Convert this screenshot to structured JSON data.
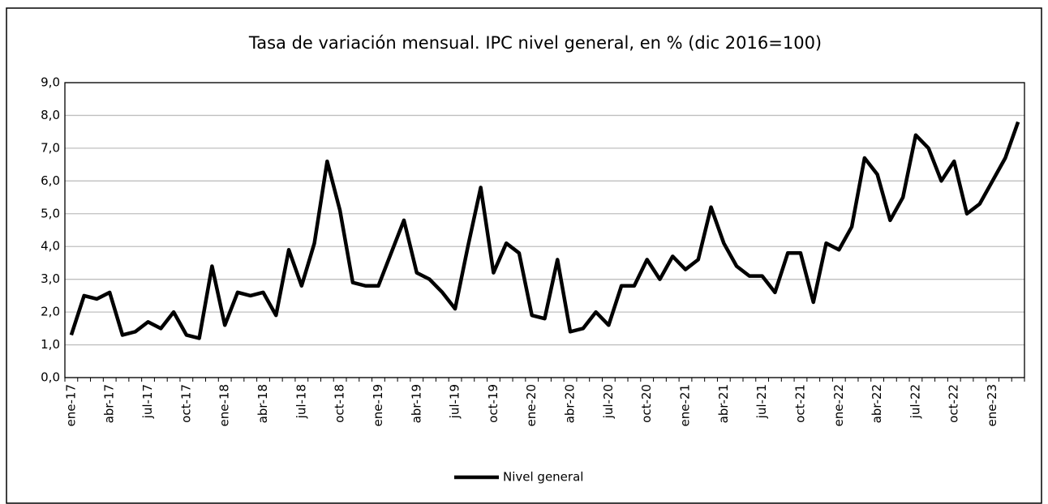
{
  "chart_data": {
    "type": "line",
    "title": "Tasa de variación mensual. IPC nivel general, en % (dic 2016=100)",
    "categories": [
      "ene-17",
      null,
      null,
      "abr-17",
      null,
      null,
      "jul-17",
      null,
      null,
      "oct-17",
      null,
      null,
      "ene-18",
      null,
      null,
      "abr-18",
      null,
      null,
      "jul-18",
      null,
      null,
      "oct-18",
      null,
      null,
      "ene-19",
      null,
      null,
      "abr-19",
      null,
      null,
      "jul-19",
      null,
      null,
      "oct-19",
      null,
      null,
      "ene-20",
      null,
      null,
      "abr-20",
      null,
      null,
      "jul-20",
      null,
      null,
      "oct-20",
      null,
      null,
      "ene-21",
      null,
      null,
      "abr-21",
      null,
      null,
      "jul-21",
      null,
      null,
      "oct-21",
      null,
      null,
      "ene-22",
      null,
      null,
      "abr-22",
      null,
      null,
      "jul-22",
      null,
      null,
      "oct-22",
      null,
      null,
      "ene-23",
      null,
      null
    ],
    "series": [
      {
        "name": "Nivel general",
        "color": "#000000",
        "values": [
          1.3,
          2.5,
          2.4,
          2.6,
          1.3,
          1.4,
          1.7,
          1.5,
          2.0,
          1.3,
          1.2,
          3.4,
          1.6,
          2.6,
          2.5,
          2.6,
          1.9,
          3.9,
          2.8,
          4.1,
          6.6,
          5.1,
          2.9,
          2.8,
          2.8,
          3.8,
          4.8,
          3.2,
          3.0,
          2.6,
          2.1,
          4.0,
          5.8,
          3.2,
          4.1,
          3.8,
          1.9,
          1.8,
          3.6,
          1.4,
          1.5,
          2.0,
          1.6,
          2.8,
          2.8,
          3.6,
          3.0,
          3.7,
          3.3,
          3.6,
          5.2,
          4.1,
          3.4,
          3.1,
          3.1,
          2.6,
          3.8,
          3.8,
          2.3,
          4.1,
          3.9,
          4.6,
          6.7,
          6.2,
          4.8,
          5.5,
          7.4,
          7.0,
          6.0,
          6.6,
          5.0,
          5.3,
          6.0,
          6.7,
          7.8
        ]
      }
    ],
    "ylim": [
      0,
      9
    ],
    "yticks": [
      {
        "value": 0,
        "label": "0,0"
      },
      {
        "value": 1,
        "label": "1,0"
      },
      {
        "value": 2,
        "label": "2,0"
      },
      {
        "value": 3,
        "label": "3,0"
      },
      {
        "value": 4,
        "label": "4,0"
      },
      {
        "value": 5,
        "label": "5,0"
      },
      {
        "value": 6,
        "label": "6,0"
      },
      {
        "value": 7,
        "label": "7,0"
      },
      {
        "value": 8,
        "label": "8,0"
      },
      {
        "value": 9,
        "label": "9,0"
      }
    ],
    "grid": true,
    "legend": "bottom"
  }
}
